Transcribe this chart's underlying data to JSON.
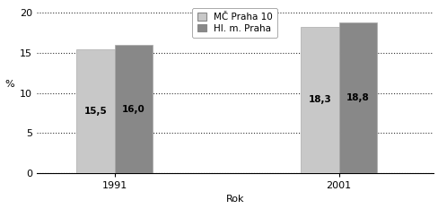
{
  "years": [
    "1991",
    "2001"
  ],
  "series": [
    {
      "label": "MČ Praha 10",
      "values": [
        15.5,
        18.3
      ],
      "color": "#c8c8c8"
    },
    {
      "label": "Hl. m. Praha",
      "values": [
        16.0,
        18.8
      ],
      "color": "#888888"
    }
  ],
  "bar_labels": [
    [
      "15,5",
      "16,0"
    ],
    [
      "18,3",
      "18,8"
    ]
  ],
  "ylabel": "%",
  "xlabel": "Rok",
  "ylim": [
    0,
    21
  ],
  "yticks": [
    0,
    5,
    10,
    15,
    20
  ],
  "title": "",
  "bar_width": 0.22,
  "group_positions": [
    1.0,
    2.3
  ],
  "background_color": "#ffffff",
  "grid_color": "#333333",
  "label_fontsize": 7.5,
  "tick_fontsize": 8,
  "legend_fontsize": 7.5,
  "xlim": [
    0.55,
    2.85
  ]
}
